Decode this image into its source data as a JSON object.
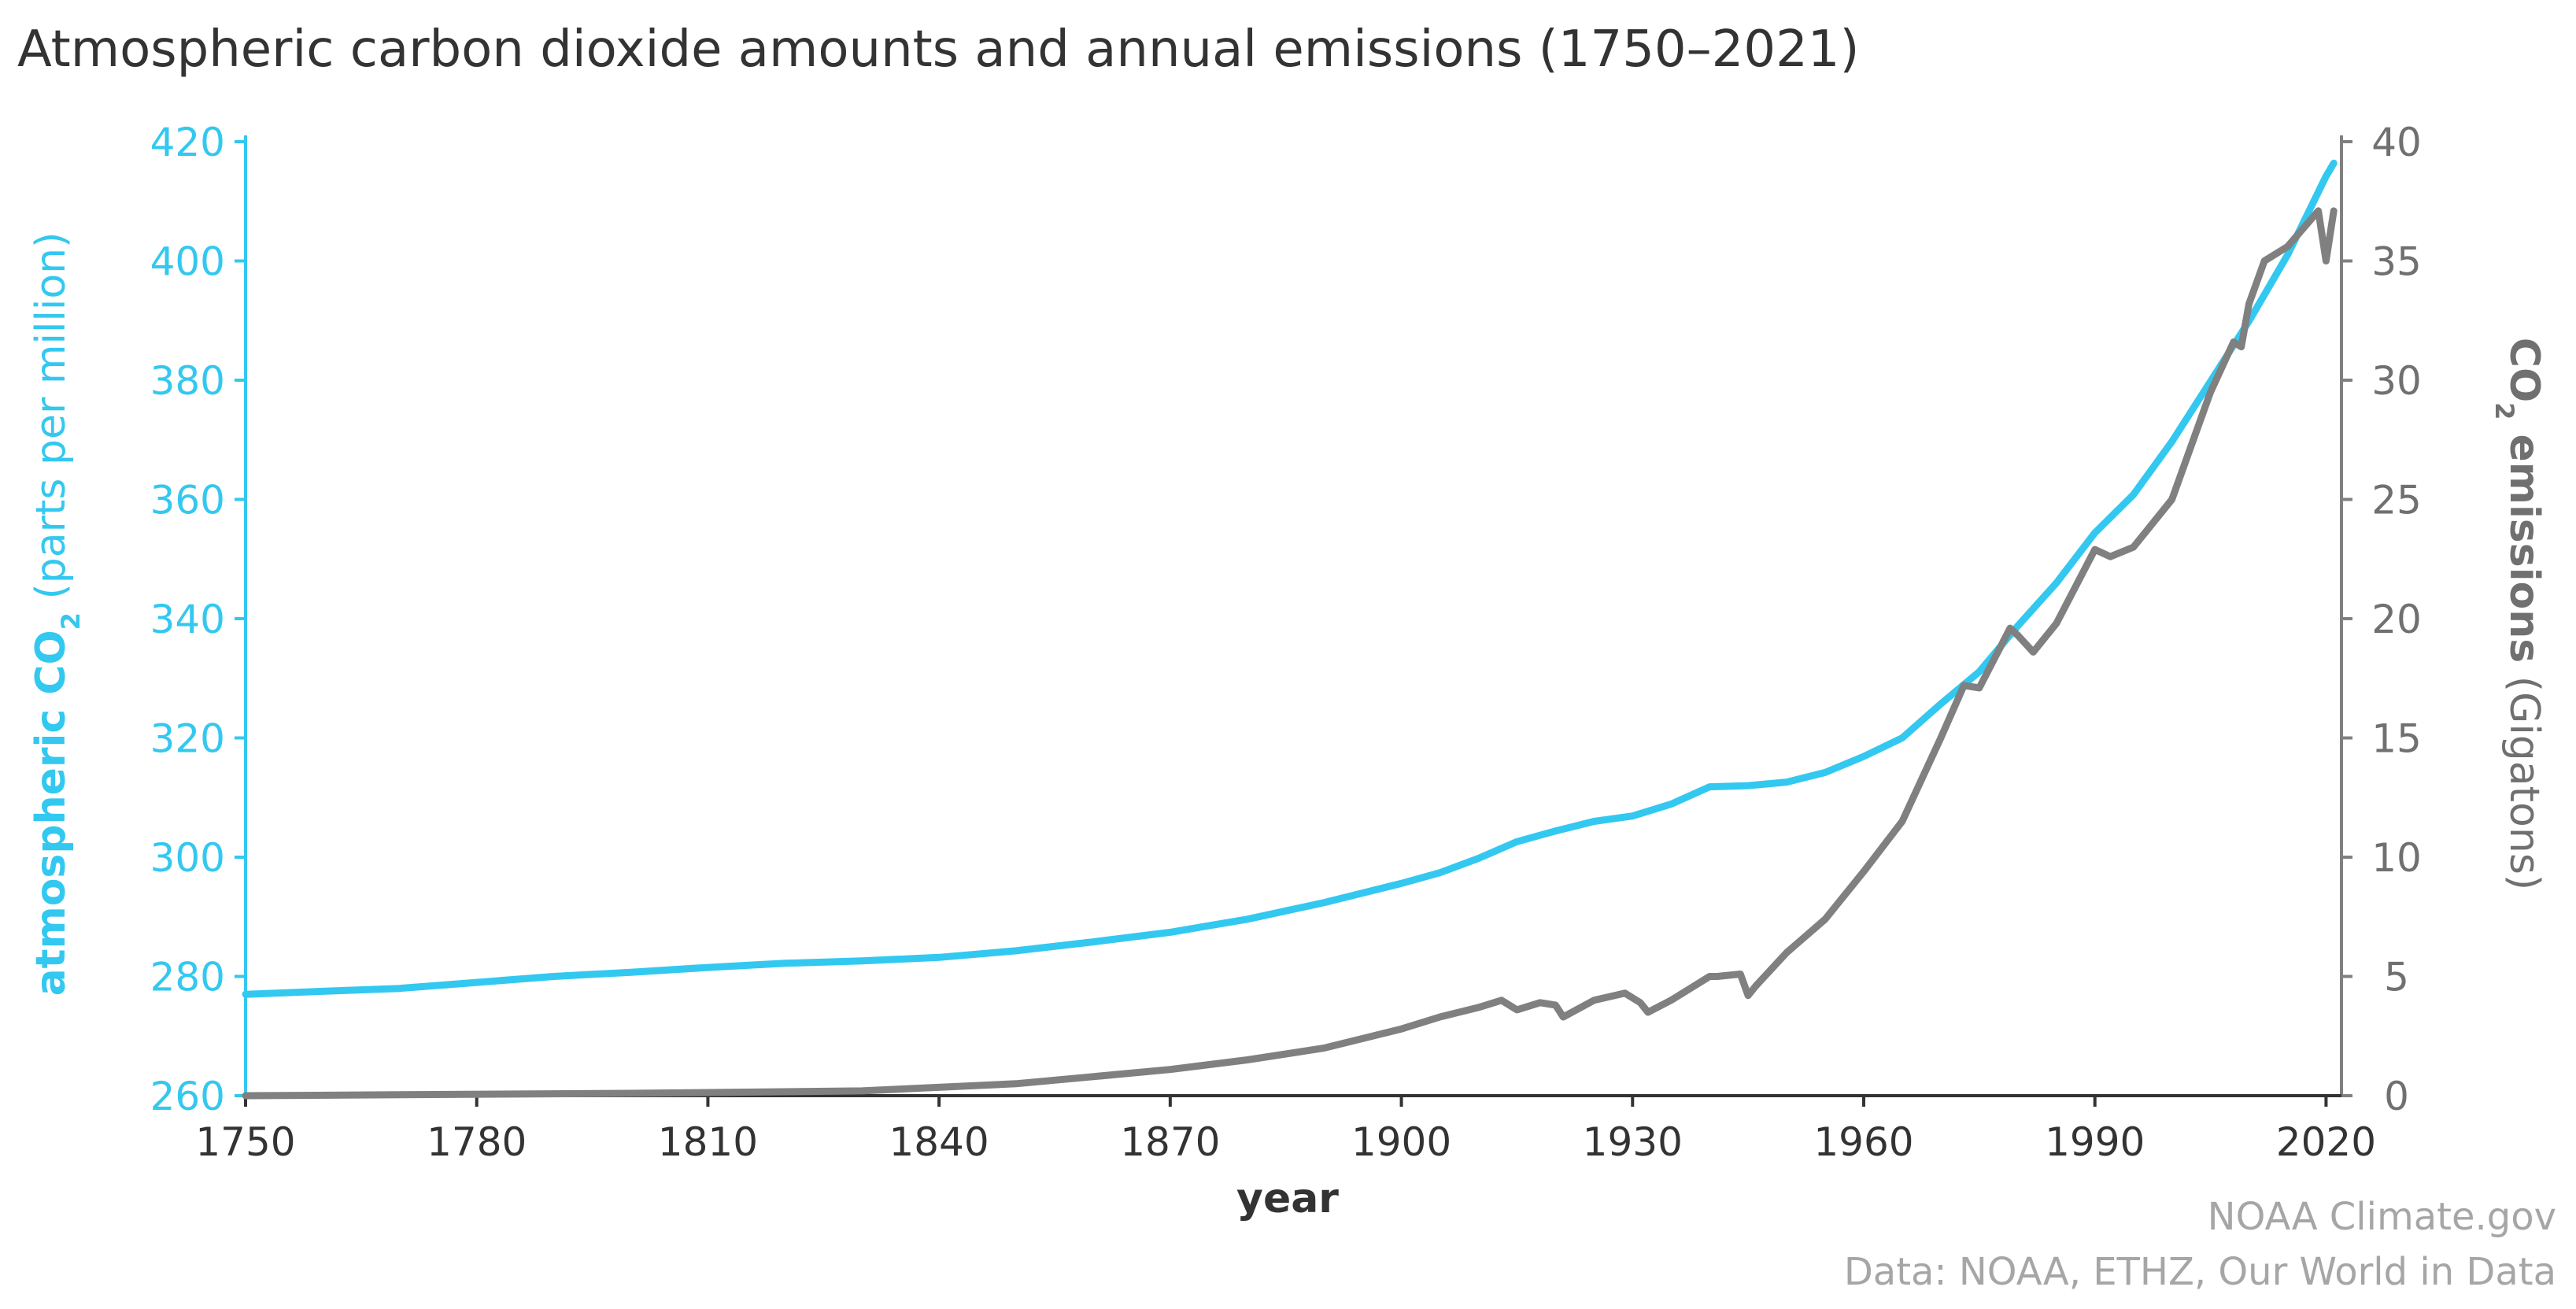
{
  "chart_data": {
    "type": "line",
    "title": "Atmospheric carbon dioxide amounts and annual emissions (1750–2021)",
    "xlabel": "year",
    "xlim": [
      1750,
      2022
    ],
    "x_ticks": [
      1750,
      1780,
      1810,
      1840,
      1870,
      1900,
      1930,
      1960,
      1990,
      2020
    ],
    "y_left": {
      "label_prefix": "atmospheric CO",
      "label_sub": "2",
      "label_suffix": " (parts per million)",
      "ylim": [
        260,
        420
      ],
      "ticks": [
        260,
        280,
        300,
        320,
        340,
        360,
        380,
        400,
        420
      ],
      "color": "#33c8f0"
    },
    "y_right": {
      "label_prefix": "CO",
      "label_sub": "2",
      "label_bold": " emissions",
      "label_suffix": " (Gigatons)",
      "ylim": [
        0,
        40
      ],
      "ticks": [
        0,
        5,
        10,
        15,
        20,
        25,
        30,
        35,
        40
      ],
      "color": "#808080"
    },
    "grid": false,
    "series": [
      {
        "name": "atmospheric CO2 (ppm)",
        "axis": "left",
        "color": "#33c8f0",
        "x": [
          1750,
          1760,
          1770,
          1780,
          1790,
          1800,
          1810,
          1820,
          1830,
          1840,
          1850,
          1860,
          1870,
          1880,
          1890,
          1900,
          1905,
          1910,
          1915,
          1920,
          1925,
          1930,
          1935,
          1940,
          1945,
          1950,
          1955,
          1960,
          1965,
          1970,
          1975,
          1980,
          1985,
          1990,
          1995,
          2000,
          2005,
          2010,
          2015,
          2020,
          2021
        ],
        "values": [
          277,
          277.5,
          278,
          279,
          280,
          280.7,
          281.5,
          282.2,
          282.6,
          283.2,
          284.3,
          285.8,
          287.4,
          289.6,
          292.4,
          295.6,
          297.4,
          299.8,
          302.6,
          304.4,
          306.0,
          306.9,
          308.9,
          311.8,
          312.0,
          312.6,
          314.2,
          316.9,
          320.0,
          325.7,
          331.1,
          338.8,
          346.0,
          354.4,
          360.8,
          369.7,
          379.8,
          389.9,
          401.0,
          414.2,
          416.4
        ]
      },
      {
        "name": "CO2 emissions (Gigatons)",
        "axis": "right",
        "color": "#808080",
        "x": [
          1750,
          1800,
          1830,
          1850,
          1860,
          1870,
          1880,
          1890,
          1900,
          1905,
          1910,
          1913,
          1915,
          1918,
          1920,
          1921,
          1925,
          1929,
          1931,
          1932,
          1935,
          1940,
          1941,
          1944,
          1945,
          1946,
          1950,
          1955,
          1960,
          1965,
          1970,
          1973,
          1975,
          1979,
          1980,
          1982,
          1985,
          1990,
          1992,
          1995,
          2000,
          2005,
          2008,
          2009,
          2010,
          2012,
          2015,
          2019,
          2020,
          2021
        ],
        "values": [
          0,
          0.1,
          0.2,
          0.5,
          0.8,
          1.1,
          1.5,
          2.0,
          2.8,
          3.3,
          3.7,
          4.0,
          3.6,
          3.9,
          3.8,
          3.3,
          4.0,
          4.3,
          3.9,
          3.5,
          4.0,
          5.0,
          5.0,
          5.1,
          4.2,
          4.6,
          6.0,
          7.4,
          9.4,
          11.5,
          15.0,
          17.2,
          17.1,
          19.6,
          19.3,
          18.6,
          19.8,
          22.9,
          22.6,
          23.0,
          25.0,
          29.5,
          31.6,
          31.4,
          33.2,
          35.0,
          35.6,
          37.1,
          35.0,
          37.1
        ]
      }
    ]
  },
  "credits": {
    "line1": "NOAA Climate.gov",
    "line2": "Data: NOAA, ETHZ, Our World in Data"
  }
}
